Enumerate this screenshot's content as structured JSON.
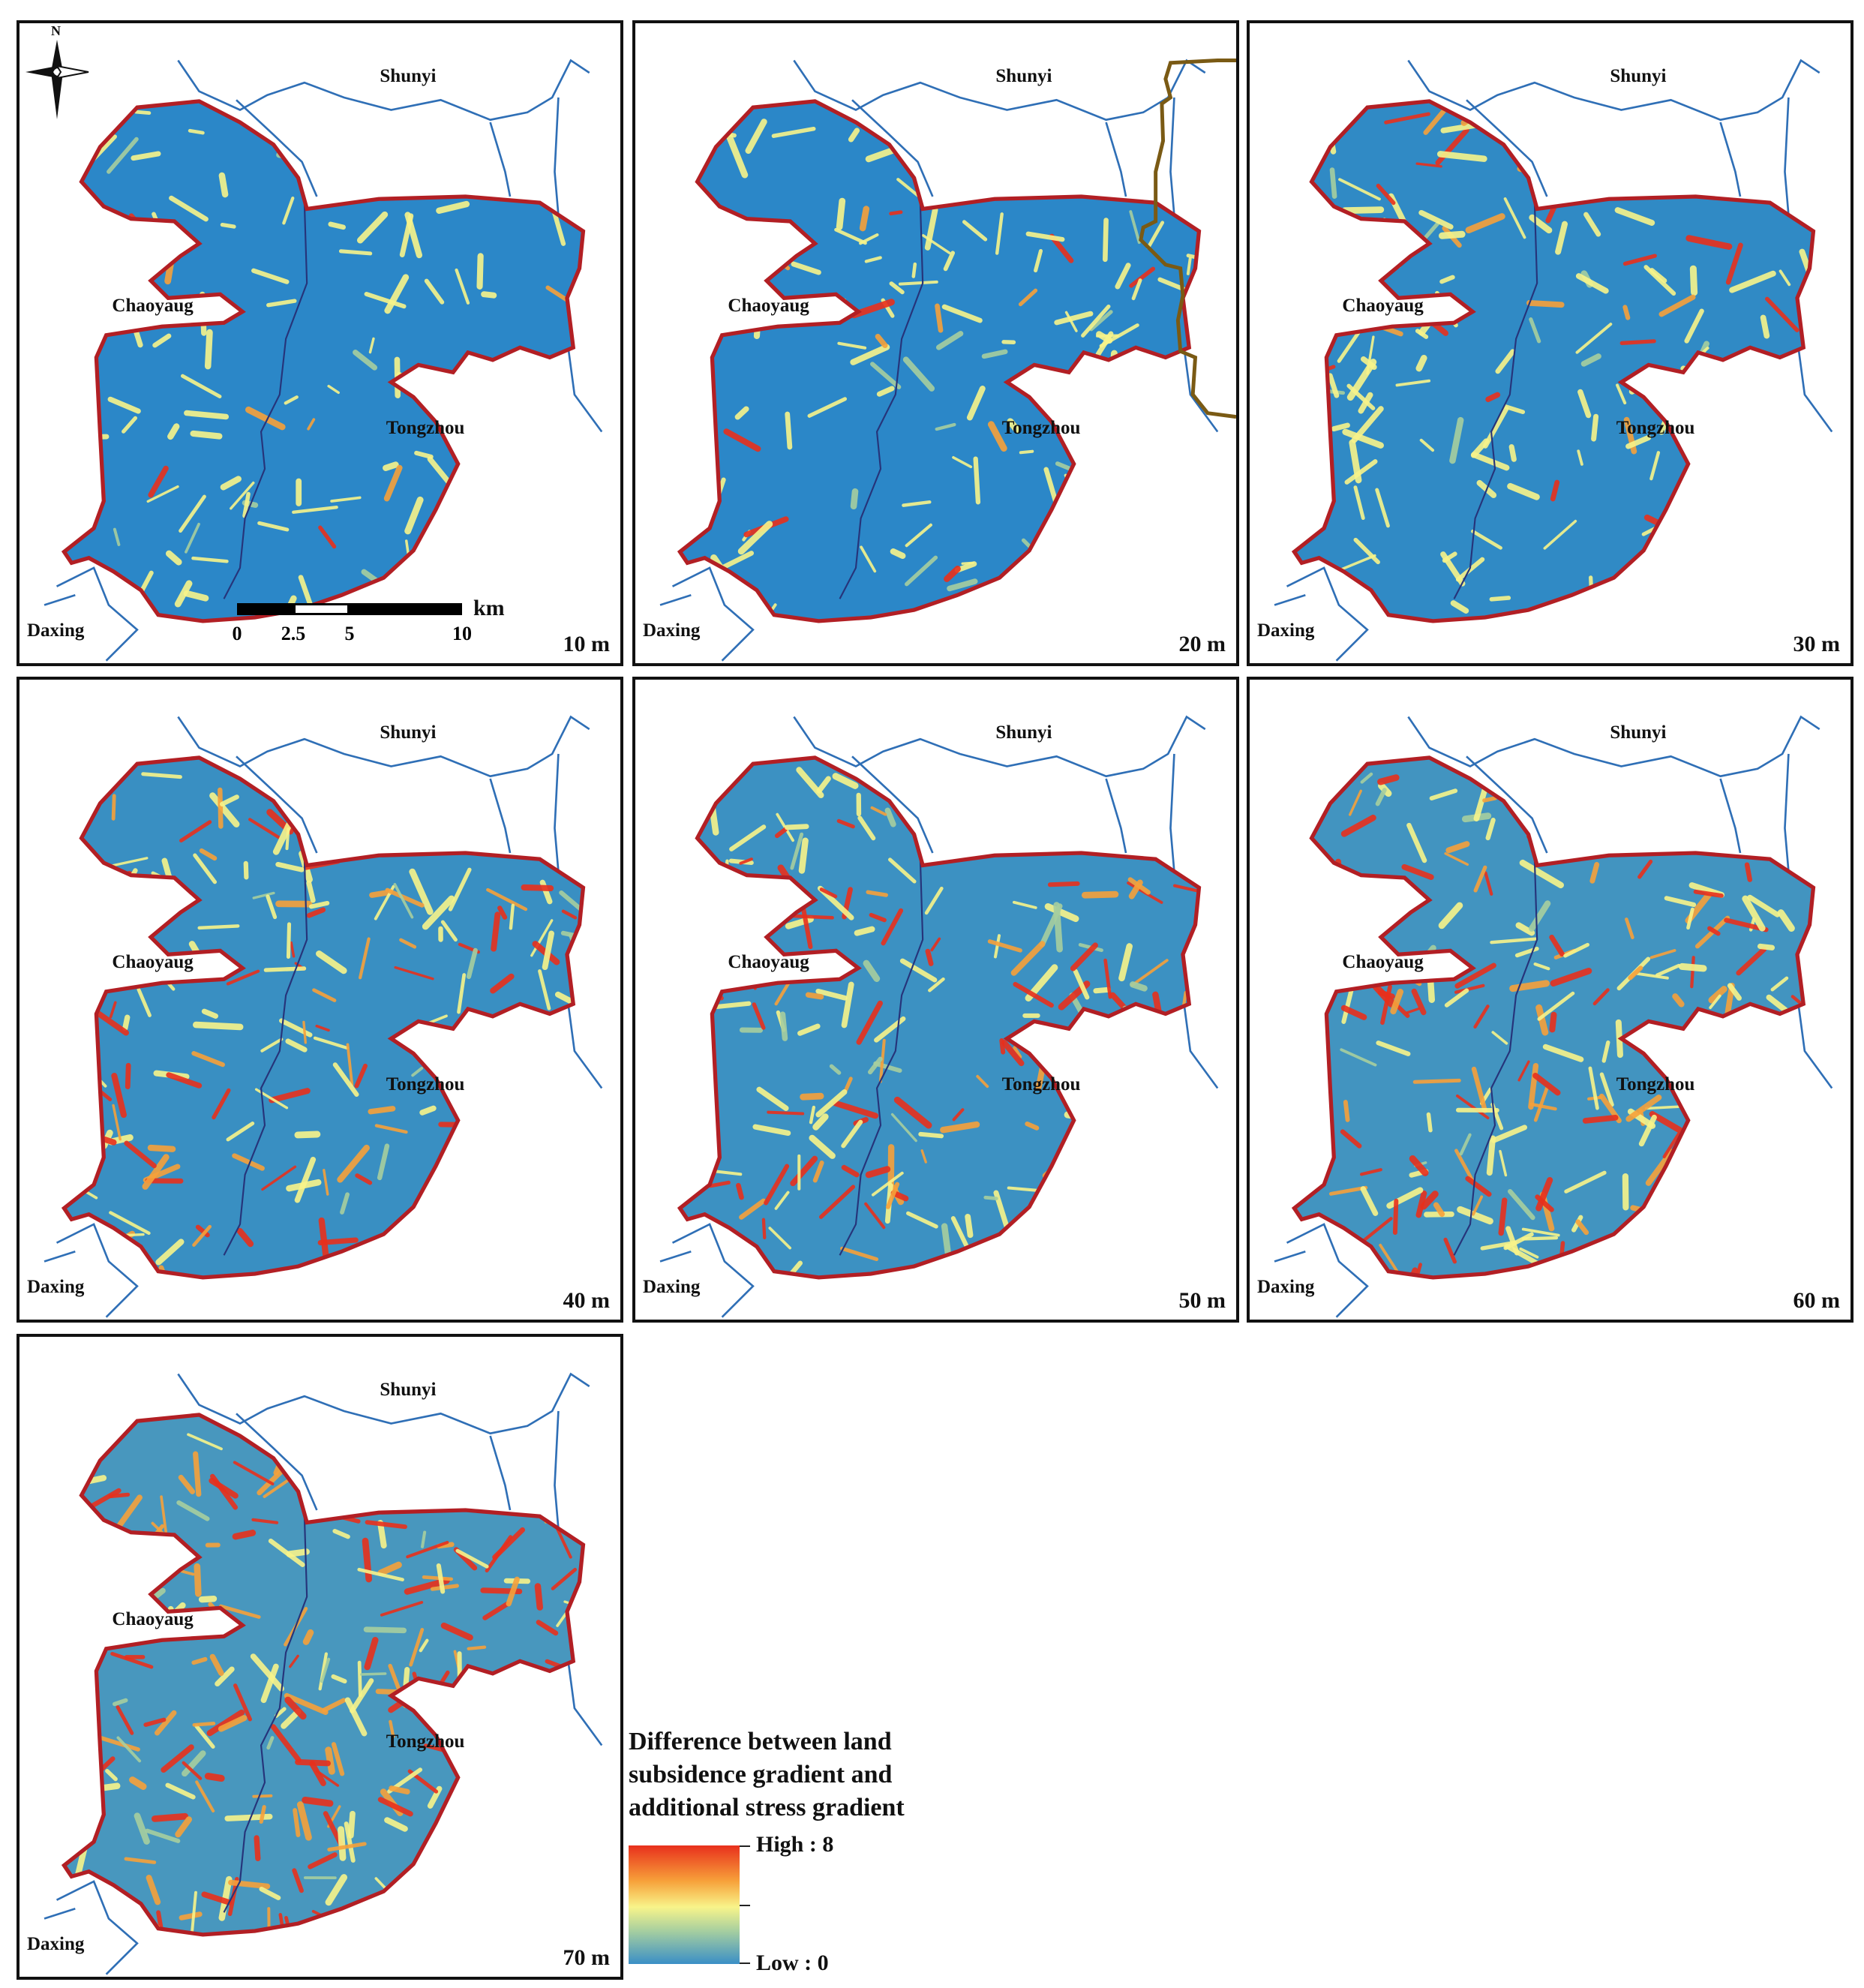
{
  "panels": [
    {
      "depth": "10 m",
      "level": 0.12
    },
    {
      "depth": "20 m",
      "level": 0.2
    },
    {
      "depth": "30 m",
      "level": 0.32
    },
    {
      "depth": "40 m",
      "level": 0.5
    },
    {
      "depth": "50 m",
      "level": 0.56
    },
    {
      "depth": "60 m",
      "level": 0.66
    },
    {
      "depth": "70 m",
      "level": 0.78
    }
  ],
  "places": {
    "shunyi": "Shunyi",
    "chaoyang": "Chaoyaug",
    "tongzhou": "Tongzhou",
    "daxing": "Daxing"
  },
  "compass": {
    "north": "N"
  },
  "scalebar": {
    "unit": "km",
    "ticks": [
      "0",
      "2.5",
      "5",
      "10"
    ]
  },
  "legend": {
    "title_lines": [
      "Difference between land",
      "subsidence gradient and",
      "additional stress gradient"
    ],
    "high": "High : 8",
    "low": "Low : 0",
    "colors": [
      "#e8301c",
      "#f7a13a",
      "#f8f48a",
      "#a7cf9f",
      "#3a8fc6"
    ]
  },
  "colors": {
    "boundary": "#b21f24",
    "river": "#2f6fb6",
    "district": "#26347a",
    "low": "#2b87c8"
  }
}
